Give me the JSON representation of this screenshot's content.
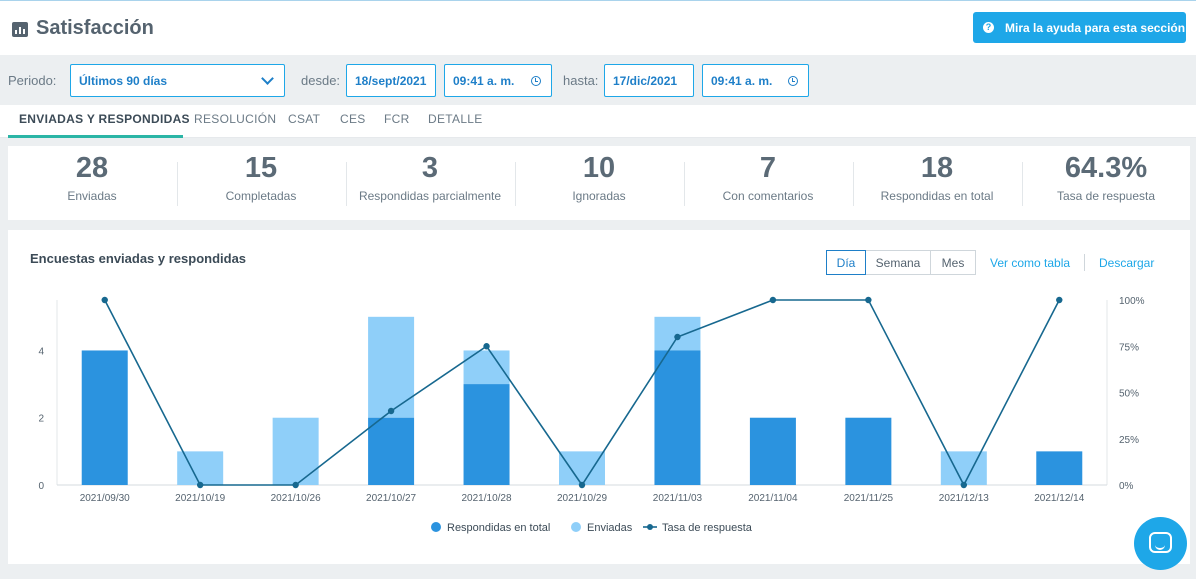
{
  "header": {
    "title": "Satisfacción",
    "title_icon": "bar-chart-icon",
    "help_button": "Mira la ayuda para esta sección",
    "help_icon": "question-circle-icon"
  },
  "filters": {
    "period_label": "Periodo:",
    "period_value": "Últimos 90 días",
    "from_label": "desde:",
    "from_date": "18/sept/2021",
    "from_time": "09:41 a. m.",
    "to_label": "hasta:",
    "to_date": "17/dic/2021",
    "to_time": "09:41 a. m."
  },
  "tabs": [
    "ENVIADAS Y RESPONDIDAS",
    "RESOLUCIÓN",
    "CSAT",
    "CES",
    "FCR",
    "DETALLE"
  ],
  "stats": [
    {
      "value": "28",
      "label": "Enviadas"
    },
    {
      "value": "15",
      "label": "Completadas"
    },
    {
      "value": "3",
      "label": "Respondidas parcialmente"
    },
    {
      "value": "10",
      "label": "Ignoradas"
    },
    {
      "value": "7",
      "label": "Con comentarios"
    },
    {
      "value": "18",
      "label": "Respondidas en total"
    },
    {
      "value": "64.3%",
      "label": "Tasa de respuesta"
    }
  ],
  "chart_card": {
    "title": "Encuestas enviadas y respondidas",
    "granularity": [
      "Día",
      "Semana",
      "Mes"
    ],
    "view_table": "Ver como tabla",
    "download": "Descargar"
  },
  "colors": {
    "responded": "#2b93df",
    "sent": "#8fcff9",
    "rate": "#17688f",
    "accent": "#1ea7e8"
  },
  "chart_data": {
    "type": "bar",
    "title": "",
    "xlabel": "",
    "ylabel": "",
    "categories": [
      "2021/09/30",
      "2021/10/19",
      "2021/10/26",
      "2021/10/27",
      "2021/10/28",
      "2021/10/29",
      "2021/11/03",
      "2021/11/04",
      "2021/11/25",
      "2021/12/13",
      "2021/12/14"
    ],
    "series": [
      {
        "name": "Respondidas en total",
        "type": "bar",
        "values": [
          4,
          0,
          0,
          2,
          3,
          0,
          4,
          2,
          2,
          0,
          1
        ]
      },
      {
        "name": "Enviadas",
        "type": "bar",
        "values": [
          4,
          1,
          2,
          5,
          4,
          1,
          5,
          2,
          2,
          1,
          1
        ]
      },
      {
        "name": "Tasa de respuesta",
        "type": "line",
        "axis": "right",
        "values": [
          100,
          0,
          0,
          40,
          75,
          0,
          80,
          100,
          100,
          0,
          100
        ]
      }
    ],
    "ylim": [
      0,
      5.5
    ],
    "yticks": [
      "0",
      "2",
      "4"
    ],
    "ytick_values": [
      0,
      2,
      4
    ],
    "y2lim": [
      0,
      100
    ],
    "y2ticks": [
      "0%",
      "25%",
      "50%",
      "75%",
      "100%"
    ],
    "y2tick_values": [
      0,
      25,
      50,
      75,
      100
    ],
    "legend_position": "bottom"
  }
}
